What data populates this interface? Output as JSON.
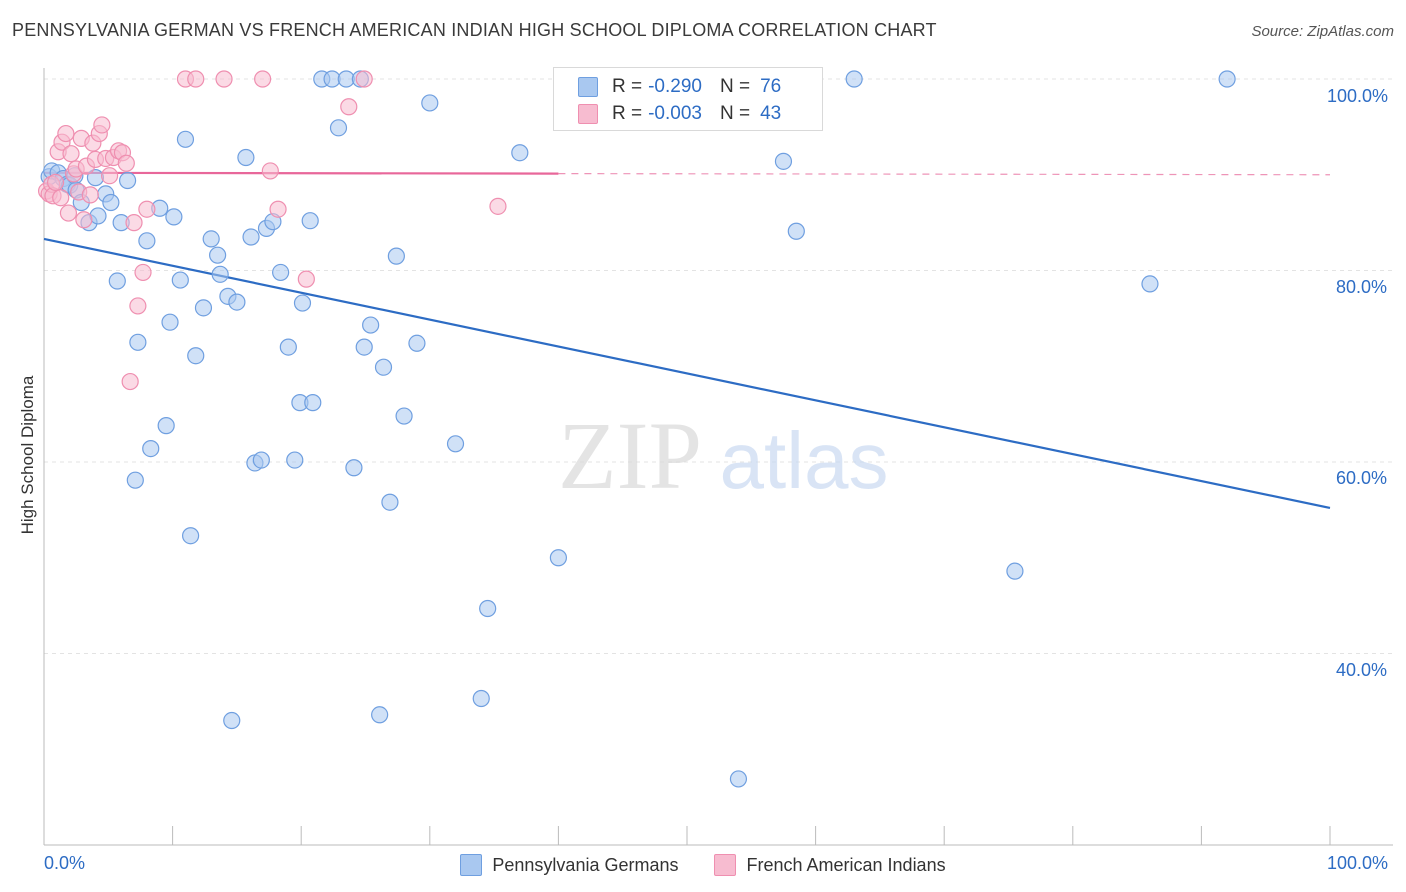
{
  "title": "PENNSYLVANIA GERMAN VS FRENCH AMERICAN INDIAN HIGH SCHOOL DIPLOMA CORRELATION CHART",
  "source": "Source: ZipAtlas.com",
  "watermark": {
    "zip": "ZIP",
    "atlas": "atlas"
  },
  "stats": [
    {
      "r_label": "R =",
      "r_value": "-0.290",
      "n_label": "N =",
      "n_value": "76",
      "color": "#a9c8f0",
      "border": "#6f9fe0"
    },
    {
      "r_label": "R =",
      "r_value": "-0.003",
      "n_label": "N =",
      "n_value": "43",
      "color": "#f7bcd0",
      "border": "#ef8fb0"
    }
  ],
  "legend": [
    {
      "label": "Pennsylvania Germans",
      "color": "#a9c8f0",
      "border": "#6f9fe0"
    },
    {
      "label": "French American Indians",
      "color": "#f7bcd0",
      "border": "#ef8fb0"
    }
  ],
  "x_tick_labels": {
    "left": "0.0%",
    "right": "100.0%"
  },
  "y_tick_labels": [
    "100.0%",
    "80.0%",
    "60.0%",
    "40.0%"
  ],
  "chart_data": {
    "type": "scatter",
    "title": "PENNSYLVANIA GERMAN VS FRENCH AMERICAN INDIAN HIGH SCHOOL DIPLOMA CORRELATION CHART",
    "xlabel": "",
    "ylabel": "High School Diploma",
    "xlim": [
      0,
      100
    ],
    "ylim": [
      20,
      102
    ],
    "y_ticks": [
      100,
      80,
      60,
      40
    ],
    "series": [
      {
        "name": "Pennsylvania Germans",
        "color": "#6f9fe0",
        "fill": "#a9c8f0",
        "trend": {
          "x0": 0,
          "y0": 83.3,
          "x1": 100,
          "y1": 55.2,
          "color": "#2d6cc4",
          "style": "solid"
        },
        "points": [
          [
            0.4,
            89.8
          ],
          [
            0.6,
            90.4
          ],
          [
            1.1,
            90.2
          ],
          [
            1.5,
            89.6
          ],
          [
            1.8,
            89.0
          ],
          [
            2.0,
            88.9
          ],
          [
            2.4,
            89.9
          ],
          [
            2.5,
            88.4
          ],
          [
            2.9,
            87.1
          ],
          [
            3.5,
            85.0
          ],
          [
            4.0,
            89.7
          ],
          [
            4.2,
            85.7
          ],
          [
            4.8,
            88.0
          ],
          [
            5.2,
            87.1
          ],
          [
            5.7,
            78.9
          ],
          [
            6.0,
            85.0
          ],
          [
            6.5,
            89.4
          ],
          [
            7.1,
            58.1
          ],
          [
            7.3,
            72.5
          ],
          [
            8.0,
            83.1
          ],
          [
            8.3,
            61.4
          ],
          [
            9.0,
            86.5
          ],
          [
            9.5,
            63.8
          ],
          [
            9.8,
            74.6
          ],
          [
            10.1,
            85.6
          ],
          [
            10.6,
            79.0
          ],
          [
            11.0,
            93.7
          ],
          [
            11.4,
            52.3
          ],
          [
            11.8,
            71.1
          ],
          [
            12.4,
            76.1
          ],
          [
            13.0,
            83.3
          ],
          [
            13.5,
            81.6
          ],
          [
            13.7,
            79.6
          ],
          [
            14.3,
            77.3
          ],
          [
            14.6,
            33.0
          ],
          [
            15.0,
            76.7
          ],
          [
            15.7,
            91.8
          ],
          [
            16.1,
            83.5
          ],
          [
            16.4,
            59.9
          ],
          [
            16.9,
            60.2
          ],
          [
            17.3,
            84.4
          ],
          [
            17.8,
            85.1
          ],
          [
            18.4,
            79.8
          ],
          [
            19.0,
            72.0
          ],
          [
            19.5,
            60.2
          ],
          [
            19.9,
            66.2
          ],
          [
            20.1,
            76.6
          ],
          [
            20.7,
            85.2
          ],
          [
            20.9,
            66.2
          ],
          [
            21.6,
            100.0
          ],
          [
            22.4,
            100.0
          ],
          [
            22.9,
            94.9
          ],
          [
            23.5,
            100.0
          ],
          [
            24.1,
            59.4
          ],
          [
            24.6,
            100.0
          ],
          [
            24.9,
            72.0
          ],
          [
            25.4,
            74.3
          ],
          [
            26.1,
            33.6
          ],
          [
            26.4,
            69.9
          ],
          [
            26.9,
            55.8
          ],
          [
            27.4,
            81.5
          ],
          [
            28.0,
            64.8
          ],
          [
            29.0,
            72.4
          ],
          [
            30.0,
            97.5
          ],
          [
            32.0,
            61.9
          ],
          [
            34.0,
            35.3
          ],
          [
            34.5,
            44.7
          ],
          [
            37.0,
            92.3
          ],
          [
            40.0,
            50.0
          ],
          [
            54.0,
            26.9
          ],
          [
            57.5,
            91.4
          ],
          [
            58.5,
            84.1
          ],
          [
            63.0,
            100.0
          ],
          [
            75.5,
            48.6
          ],
          [
            86.0,
            78.6
          ],
          [
            92.0,
            100.0
          ]
        ]
      },
      {
        "name": "French American Indians",
        "color": "#ef8fb0",
        "fill": "#f7bcd0",
        "trend": {
          "x0": 0,
          "y0": 90.2,
          "x1": 100,
          "y1": 90.0,
          "color": "#e8679a",
          "style": "solid-then-dashed",
          "solid_until_x": 40
        },
        "points": [
          [
            0.2,
            88.3
          ],
          [
            0.4,
            88.0
          ],
          [
            0.6,
            89.0
          ],
          [
            0.7,
            87.8
          ],
          [
            0.9,
            89.2
          ],
          [
            1.1,
            92.4
          ],
          [
            1.3,
            87.6
          ],
          [
            1.4,
            93.4
          ],
          [
            1.7,
            94.3
          ],
          [
            1.9,
            86.0
          ],
          [
            2.1,
            92.2
          ],
          [
            2.3,
            90.1
          ],
          [
            2.5,
            90.6
          ],
          [
            2.7,
            88.2
          ],
          [
            2.9,
            93.8
          ],
          [
            3.1,
            85.3
          ],
          [
            3.3,
            90.9
          ],
          [
            3.6,
            87.9
          ],
          [
            3.8,
            93.3
          ],
          [
            4.0,
            91.6
          ],
          [
            4.3,
            94.3
          ],
          [
            4.5,
            95.2
          ],
          [
            4.8,
            91.7
          ],
          [
            5.1,
            89.9
          ],
          [
            5.4,
            91.8
          ],
          [
            5.8,
            92.5
          ],
          [
            6.1,
            92.3
          ],
          [
            6.4,
            91.2
          ],
          [
            6.7,
            68.4
          ],
          [
            7.0,
            85.0
          ],
          [
            7.3,
            76.3
          ],
          [
            7.7,
            79.8
          ],
          [
            8.0,
            86.4
          ],
          [
            11.0,
            100.0
          ],
          [
            11.8,
            100.0
          ],
          [
            14.0,
            100.0
          ],
          [
            17.0,
            100.0
          ],
          [
            17.6,
            90.4
          ],
          [
            18.2,
            86.4
          ],
          [
            20.4,
            79.1
          ],
          [
            23.7,
            97.1
          ],
          [
            24.9,
            100.0
          ],
          [
            35.3,
            86.7
          ]
        ]
      }
    ]
  }
}
